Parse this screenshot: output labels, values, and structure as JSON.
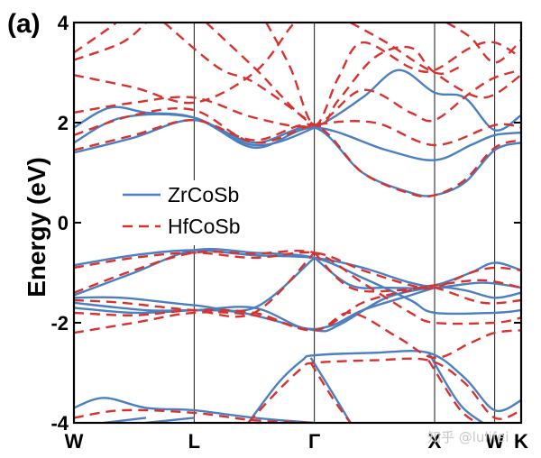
{
  "panel_label": "(a)",
  "watermark": "知乎 @lulifei",
  "chart_data": {
    "type": "line",
    "title": "",
    "xlabel": "",
    "ylabel": "Energy (eV)",
    "ylim": [
      -4,
      4
    ],
    "yticks": [
      -4,
      -2,
      0,
      2,
      4
    ],
    "kpath": [
      {
        "label": "W",
        "x": 0
      },
      {
        "label": "L",
        "x": 1
      },
      {
        "label": "Γ",
        "x": 2
      },
      {
        "label": "X",
        "x": 3
      },
      {
        "label": "W",
        "x": 3.5
      },
      {
        "label": "K",
        "x": 3.72
      }
    ],
    "legend": {
      "placement": "left-center"
    },
    "colors": {
      "ZrCoSb": "#4a7fc1",
      "HfCoSb": "#d8322e"
    },
    "series": [
      {
        "name": "ZrCoSb",
        "style": "solid",
        "bands": [
          [
            [
              0,
              -3.7
            ],
            [
              0.25,
              -3.5
            ],
            [
              0.6,
              -3.7
            ],
            [
              1,
              -3.75
            ],
            [
              1.5,
              -3.9
            ],
            [
              2,
              -4.0
            ]
          ],
          [
            [
              0.6,
              -4.0
            ],
            [
              1,
              -3.9
            ]
          ],
          [
            [
              0.25,
              -4.0
            ],
            [
              0.6,
              -3.9
            ]
          ],
          [
            [
              1.45,
              -4.0
            ],
            [
              1.7,
              -3.2
            ],
            [
              1.9,
              -2.75
            ],
            [
              2,
              -2.65
            ],
            [
              2.5,
              -2.6
            ],
            [
              2.95,
              -2.6
            ],
            [
              3.25,
              -3.1
            ],
            [
              3.5,
              -3.75
            ],
            [
              3.72,
              -3.55
            ]
          ],
          [
            [
              1.97,
              -2.7
            ],
            [
              2.15,
              -3.4
            ],
            [
              2.3,
              -4.0
            ]
          ],
          [
            [
              2.95,
              -2.6
            ],
            [
              3.2,
              -3.6
            ],
            [
              3.4,
              -4.0
            ]
          ],
          [
            [
              0,
              -1.6
            ],
            [
              0.6,
              -1.75
            ],
            [
              1,
              -1.75
            ],
            [
              1.4,
              -1.8
            ],
            [
              2,
              -2.15
            ],
            [
              2.2,
              -2.05
            ],
            [
              2.6,
              -1.5
            ],
            [
              3,
              -1.3
            ],
            [
              3.25,
              -1.35
            ],
            [
              3.5,
              -1.5
            ],
            [
              3.72,
              -1.4
            ]
          ],
          [
            [
              0,
              -1.7
            ],
            [
              0.5,
              -1.8
            ],
            [
              1,
              -1.75
            ],
            [
              1.5,
              -1.7
            ],
            [
              1.9,
              -2.1
            ],
            [
              2.15,
              -2.05
            ],
            [
              2.4,
              -1.75
            ],
            [
              2.8,
              -1.45
            ],
            [
              3,
              -1.3
            ]
          ],
          [
            [
              0,
              -1.45
            ],
            [
              0.5,
              -1.0
            ],
            [
              1,
              -0.55
            ],
            [
              1.5,
              -0.6
            ],
            [
              2,
              -0.7
            ],
            [
              2.4,
              -1.1
            ],
            [
              2.8,
              -1.55
            ],
            [
              3,
              -1.8
            ],
            [
              3.5,
              -1.8
            ],
            [
              3.72,
              -1.75
            ]
          ],
          [
            [
              0,
              -0.85
            ],
            [
              0.5,
              -0.65
            ],
            [
              1,
              -0.55
            ],
            [
              1.5,
              -0.65
            ],
            [
              2,
              -0.7
            ],
            [
              2.4,
              -0.9
            ],
            [
              2.8,
              -1.2
            ],
            [
              3,
              -1.25
            ],
            [
              3.3,
              -1.0
            ],
            [
              3.5,
              -0.8
            ],
            [
              3.72,
              -0.95
            ]
          ],
          [
            [
              0,
              -1.5
            ],
            [
              0.4,
              -1.5
            ],
            [
              1,
              -1.65
            ],
            [
              1.5,
              -1.7
            ],
            [
              2,
              -0.7
            ]
          ],
          [
            [
              2,
              -0.7
            ],
            [
              2.3,
              -1.25
            ],
            [
              2.6,
              -1.3
            ],
            [
              3,
              -1.3
            ],
            [
              3.4,
              -1.2
            ],
            [
              3.72,
              -1.3
            ]
          ],
          [
            [
              0,
              1.4
            ],
            [
              0.5,
              1.7
            ],
            [
              1,
              2.05
            ],
            [
              1.5,
              1.6
            ],
            [
              2,
              1.9
            ],
            [
              2.4,
              1.0
            ],
            [
              2.8,
              0.6
            ],
            [
              3,
              0.55
            ],
            [
              3.25,
              0.8
            ],
            [
              3.5,
              1.45
            ],
            [
              3.72,
              1.6
            ]
          ],
          [
            [
              0,
              1.6
            ],
            [
              0.4,
              2.1
            ],
            [
              1,
              2.1
            ],
            [
              1.5,
              1.5
            ],
            [
              2,
              1.9
            ],
            [
              2.6,
              1.45
            ],
            [
              3,
              1.25
            ],
            [
              3.3,
              1.55
            ],
            [
              3.5,
              1.75
            ],
            [
              3.72,
              1.8
            ]
          ],
          [
            [
              0,
              1.9
            ],
            [
              0.3,
              2.3
            ],
            [
              0.6,
              2.2
            ],
            [
              1,
              2.1
            ],
            [
              1.5,
              1.55
            ],
            [
              2,
              1.9
            ],
            [
              2.4,
              2.5
            ],
            [
              2.7,
              3.05
            ],
            [
              3,
              2.6
            ],
            [
              3.25,
              2.5
            ],
            [
              3.5,
              1.85
            ],
            [
              3.72,
              2.15
            ]
          ]
        ]
      },
      {
        "name": "HfCoSb",
        "style": "dashed",
        "bands": [
          [
            [
              0,
              -3.9
            ],
            [
              0.4,
              -3.75
            ],
            [
              1,
              -3.8
            ],
            [
              1.5,
              -3.95
            ],
            [
              2,
              -4.0
            ]
          ],
          [
            [
              1.45,
              -4.0
            ],
            [
              1.7,
              -3.35
            ],
            [
              1.9,
              -2.9
            ],
            [
              2,
              -2.8
            ],
            [
              2.5,
              -2.75
            ],
            [
              2.95,
              -2.75
            ],
            [
              3.25,
              -3.2
            ],
            [
              3.5,
              -3.9
            ],
            [
              3.72,
              -3.75
            ]
          ],
          [
            [
              1.97,
              -2.8
            ],
            [
              2.15,
              -3.5
            ],
            [
              2.3,
              -4.0
            ]
          ],
          [
            [
              2.95,
              -2.75
            ],
            [
              3.2,
              -3.7
            ],
            [
              3.35,
              -4.0
            ]
          ],
          [
            [
              0,
              -2.2
            ],
            [
              0.5,
              -2.0
            ],
            [
              1,
              -1.8
            ],
            [
              1.5,
              -1.85
            ],
            [
              2,
              -2.15
            ],
            [
              2.3,
              -1.8
            ],
            [
              2.7,
              -2.3
            ],
            [
              3,
              -2.7
            ],
            [
              3.3,
              -2.4
            ],
            [
              3.5,
              -2.2
            ],
            [
              3.72,
              -2.15
            ]
          ],
          [
            [
              0,
              -1.8
            ],
            [
              0.5,
              -1.85
            ],
            [
              1,
              -1.75
            ],
            [
              1.5,
              -1.8
            ],
            [
              2,
              -2.15
            ],
            [
              2.4,
              -1.6
            ],
            [
              2.8,
              -1.35
            ],
            [
              3,
              -1.3
            ],
            [
              3.4,
              -1.6
            ],
            [
              3.72,
              -1.55
            ]
          ],
          [
            [
              0,
              -1.4
            ],
            [
              0.5,
              -0.95
            ],
            [
              1,
              -0.6
            ],
            [
              1.5,
              -0.62
            ],
            [
              2,
              -0.6
            ],
            [
              2.4,
              -1.2
            ],
            [
              2.8,
              -1.8
            ],
            [
              3,
              -2.0
            ],
            [
              3.5,
              -2.0
            ],
            [
              3.72,
              -1.9
            ]
          ],
          [
            [
              0,
              -0.9
            ],
            [
              0.5,
              -0.7
            ],
            [
              1,
              -0.6
            ],
            [
              1.5,
              -0.7
            ],
            [
              2,
              -0.6
            ],
            [
              2.4,
              -0.95
            ],
            [
              2.8,
              -1.25
            ],
            [
              3,
              -1.3
            ],
            [
              3.3,
              -1.0
            ],
            [
              3.5,
              -0.9
            ],
            [
              3.72,
              -0.95
            ]
          ],
          [
            [
              0,
              -1.55
            ],
            [
              0.4,
              -1.6
            ],
            [
              1,
              -1.75
            ],
            [
              1.5,
              -1.8
            ],
            [
              2,
              -0.6
            ]
          ],
          [
            [
              2,
              -0.6
            ],
            [
              2.3,
              -1.3
            ],
            [
              2.7,
              -1.35
            ],
            [
              3,
              -1.25
            ],
            [
              3.4,
              -1.15
            ],
            [
              3.72,
              -1.3
            ]
          ],
          [
            [
              0,
              1.45
            ],
            [
              0.5,
              1.75
            ],
            [
              1,
              2.05
            ],
            [
              1.5,
              1.65
            ],
            [
              2,
              1.95
            ],
            [
              2.4,
              1.0
            ],
            [
              2.8,
              0.58
            ],
            [
              3,
              0.55
            ],
            [
              3.25,
              0.85
            ],
            [
              3.5,
              1.5
            ],
            [
              3.72,
              1.65
            ]
          ],
          [
            [
              0,
              1.75
            ],
            [
              0.5,
              2.15
            ],
            [
              1,
              2.25
            ],
            [
              1.5,
              1.6
            ],
            [
              2,
              1.95
            ],
            [
              2.5,
              2.0
            ],
            [
              3,
              1.55
            ],
            [
              3.5,
              1.95
            ],
            [
              3.72,
              1.9
            ]
          ],
          [
            [
              0,
              2.2
            ],
            [
              0.5,
              2.4
            ],
            [
              1,
              2.5
            ],
            [
              1.5,
              2.1
            ],
            [
              2,
              1.95
            ],
            [
              2.4,
              2.65
            ],
            [
              2.8,
              2.2
            ],
            [
              3,
              2.05
            ],
            [
              3.3,
              2.6
            ],
            [
              3.5,
              2.9
            ],
            [
              3.72,
              3.05
            ]
          ],
          [
            [
              0,
              2.95
            ],
            [
              0.5,
              2.7
            ],
            [
              1,
              2.4
            ],
            [
              1.5,
              3.0
            ],
            [
              1.8,
              3.9
            ],
            [
              1.85,
              4.0
            ]
          ],
          [
            [
              0,
              3.25
            ],
            [
              0.4,
              3.6
            ],
            [
              0.6,
              4.0
            ]
          ],
          [
            [
              0,
              3.4
            ],
            [
              0.3,
              3.9
            ],
            [
              0.35,
              4.0
            ]
          ],
          [
            [
              1.1,
              4.0
            ],
            [
              1.5,
              3.1
            ],
            [
              2,
              1.95
            ],
            [
              2.2,
              2.45
            ],
            [
              2.5,
              3.3
            ],
            [
              2.8,
              3.5
            ],
            [
              3,
              3.0
            ],
            [
              3.4,
              2.5
            ],
            [
              3.72,
              2.95
            ]
          ],
          [
            [
              1.6,
              4.0
            ],
            [
              1.8,
              3.1
            ],
            [
              2,
              1.95
            ],
            [
              2.2,
              2.9
            ],
            [
              2.4,
              3.6
            ],
            [
              2.8,
              3.1
            ],
            [
              3,
              3.05
            ],
            [
              3.3,
              3.5
            ],
            [
              3.5,
              3.6
            ],
            [
              3.72,
              3.3
            ]
          ],
          [
            [
              0.75,
              4.0
            ],
            [
              1.2,
              3.1
            ],
            [
              1.5,
              2.8
            ],
            [
              2,
              1.95
            ]
          ],
          [
            [
              2.3,
              4.0
            ],
            [
              2.6,
              3.6
            ],
            [
              3,
              3.0
            ],
            [
              3.2,
              3.1
            ]
          ],
          [
            [
              3.1,
              4.0
            ],
            [
              3.3,
              3.7
            ],
            [
              3.5,
              3.2
            ],
            [
              3.72,
              3.65
            ]
          ]
        ]
      }
    ]
  }
}
